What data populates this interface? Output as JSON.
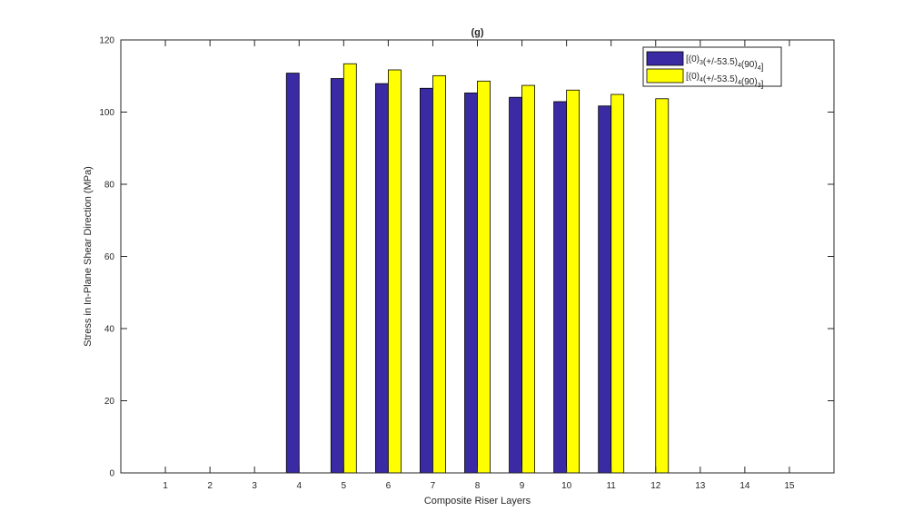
{
  "chart_data": {
    "type": "bar",
    "title": "(g)",
    "xlabel": "Composite Riser Layers",
    "ylabel": "Stress in In-Plane Shear Direction (MPa)",
    "xlim": [
      0,
      16
    ],
    "ylim": [
      0,
      120
    ],
    "x_ticks": [
      1,
      2,
      3,
      4,
      5,
      6,
      7,
      8,
      9,
      10,
      11,
      12,
      13,
      14,
      15
    ],
    "y_ticks": [
      0,
      20,
      40,
      60,
      80,
      100,
      120
    ],
    "grid": false,
    "legend_position": "top-right",
    "series": [
      {
        "legend_parts": [
          [
            "[(0)",
            ""
          ],
          [
            "3",
            "sub"
          ],
          [
            "(+/-53.5)",
            ""
          ],
          [
            "4",
            "sub"
          ],
          [
            "(90)",
            ""
          ],
          [
            "4",
            "sub"
          ],
          [
            "]",
            ""
          ]
        ],
        "color": "#3a2aa3",
        "values": [
          null,
          null,
          null,
          110.8,
          109.3,
          107.9,
          106.6,
          105.3,
          104.1,
          102.9,
          101.7,
          null,
          null,
          null,
          null
        ]
      },
      {
        "legend_parts": [
          [
            "[(0)",
            ""
          ],
          [
            "4",
            "sub"
          ],
          [
            "(+/-53.5)",
            ""
          ],
          [
            "4",
            "sub"
          ],
          [
            "(90)",
            ""
          ],
          [
            "3",
            "sub"
          ],
          [
            "]",
            ""
          ]
        ],
        "color": "#ffff00",
        "values": [
          null,
          null,
          null,
          null,
          113.4,
          111.7,
          110.1,
          108.6,
          107.4,
          106.1,
          104.9,
          103.7,
          null,
          null,
          null
        ]
      }
    ]
  }
}
